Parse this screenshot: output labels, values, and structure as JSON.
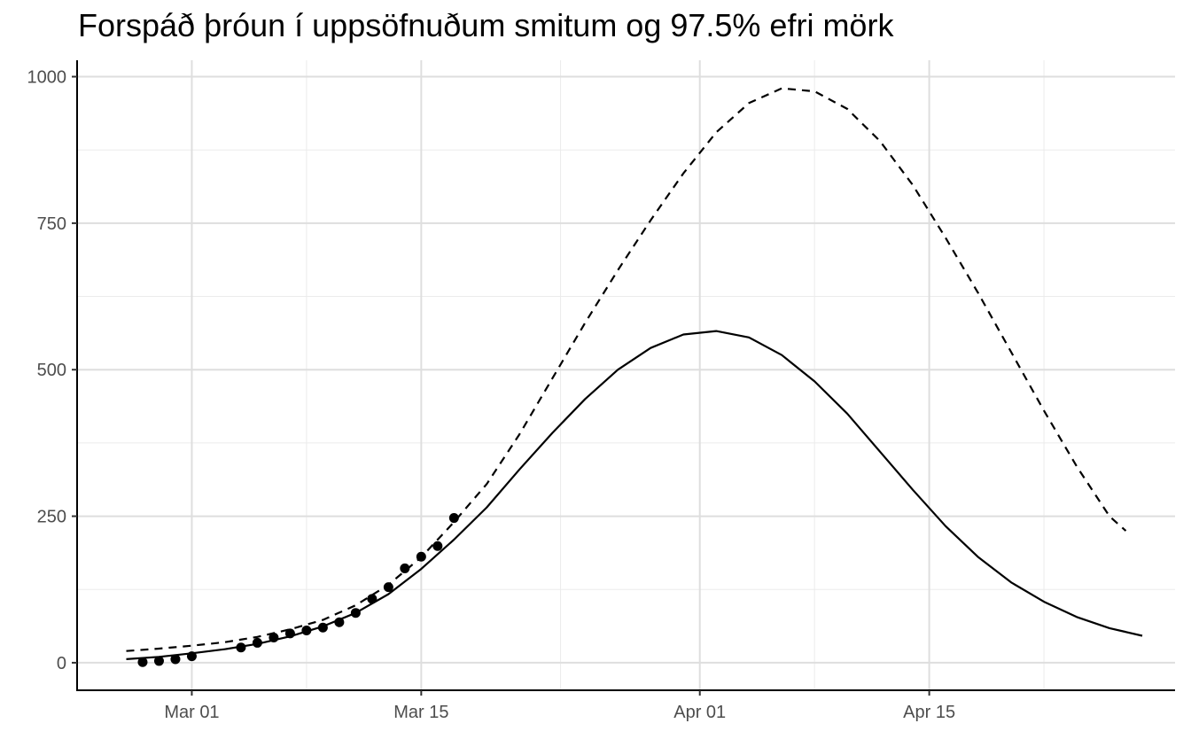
{
  "chart_data": {
    "type": "line",
    "title": "Forspáð þróun í uppsöfnuðum smitum og 97.5% efri mörk",
    "xlabel": "",
    "ylabel": "",
    "x_axis": {
      "type": "date",
      "range": [
        "2020-02-23",
        "2020-04-30"
      ],
      "ticks": [
        "2020-03-01",
        "2020-03-15",
        "2020-04-01",
        "2020-04-15"
      ],
      "tick_labels": [
        "Mar 01",
        "Mar 15",
        "Apr 01",
        "Apr 15"
      ]
    },
    "y_axis": {
      "range": [
        -47,
        1028
      ],
      "ticks": [
        0,
        250,
        500,
        750,
        1000
      ],
      "tick_labels": [
        "0",
        "250",
        "500",
        "750",
        "1000"
      ]
    },
    "grid": true,
    "legend": "none",
    "series": [
      {
        "style": "points",
        "color": "#000000",
        "points": [
          {
            "x": "2020-02-27",
            "y": 1
          },
          {
            "x": "2020-02-28",
            "y": 3
          },
          {
            "x": "2020-02-29",
            "y": 6
          },
          {
            "x": "2020-03-01",
            "y": 11
          },
          {
            "x": "2020-03-04",
            "y": 26
          },
          {
            "x": "2020-03-05",
            "y": 34
          },
          {
            "x": "2020-03-06",
            "y": 43
          },
          {
            "x": "2020-03-07",
            "y": 50
          },
          {
            "x": "2020-03-08",
            "y": 55
          },
          {
            "x": "2020-03-09",
            "y": 60
          },
          {
            "x": "2020-03-10",
            "y": 69
          },
          {
            "x": "2020-03-11",
            "y": 85
          },
          {
            "x": "2020-03-12",
            "y": 109
          },
          {
            "x": "2020-03-13",
            "y": 129
          },
          {
            "x": "2020-03-14",
            "y": 161
          },
          {
            "x": "2020-03-15",
            "y": 181
          },
          {
            "x": "2020-03-16",
            "y": 199
          },
          {
            "x": "2020-03-17",
            "y": 247
          }
        ]
      },
      {
        "style": "solid",
        "color": "#000000",
        "points": [
          {
            "x": "2020-02-26",
            "y": 6
          },
          {
            "x": "2020-02-28",
            "y": 10
          },
          {
            "x": "2020-03-01",
            "y": 16
          },
          {
            "x": "2020-03-03",
            "y": 23
          },
          {
            "x": "2020-03-05",
            "y": 32
          },
          {
            "x": "2020-03-07",
            "y": 45
          },
          {
            "x": "2020-03-09",
            "y": 62
          },
          {
            "x": "2020-03-11",
            "y": 85
          },
          {
            "x": "2020-03-13",
            "y": 117
          },
          {
            "x": "2020-03-15",
            "y": 160
          },
          {
            "x": "2020-03-17",
            "y": 210
          },
          {
            "x": "2020-03-19",
            "y": 265
          },
          {
            "x": "2020-03-21",
            "y": 330
          },
          {
            "x": "2020-03-23",
            "y": 392
          },
          {
            "x": "2020-03-25",
            "y": 450
          },
          {
            "x": "2020-03-27",
            "y": 500
          },
          {
            "x": "2020-03-29",
            "y": 537
          },
          {
            "x": "2020-03-31",
            "y": 560
          },
          {
            "x": "2020-04-02",
            "y": 566
          },
          {
            "x": "2020-04-04",
            "y": 555
          },
          {
            "x": "2020-04-06",
            "y": 525
          },
          {
            "x": "2020-04-08",
            "y": 480
          },
          {
            "x": "2020-04-10",
            "y": 425
          },
          {
            "x": "2020-04-12",
            "y": 360
          },
          {
            "x": "2020-04-14",
            "y": 295
          },
          {
            "x": "2020-04-16",
            "y": 233
          },
          {
            "x": "2020-04-18",
            "y": 180
          },
          {
            "x": "2020-04-20",
            "y": 137
          },
          {
            "x": "2020-04-22",
            "y": 104
          },
          {
            "x": "2020-04-24",
            "y": 78
          },
          {
            "x": "2020-04-26",
            "y": 59
          },
          {
            "x": "2020-04-28",
            "y": 46
          }
        ]
      },
      {
        "style": "dashed",
        "color": "#000000",
        "points": [
          {
            "x": "2020-02-26",
            "y": 20
          },
          {
            "x": "2020-02-28",
            "y": 24
          },
          {
            "x": "2020-03-01",
            "y": 29
          },
          {
            "x": "2020-03-03",
            "y": 35
          },
          {
            "x": "2020-03-05",
            "y": 44
          },
          {
            "x": "2020-03-07",
            "y": 57
          },
          {
            "x": "2020-03-09",
            "y": 73
          },
          {
            "x": "2020-03-11",
            "y": 98
          },
          {
            "x": "2020-03-13",
            "y": 133
          },
          {
            "x": "2020-03-15",
            "y": 180
          },
          {
            "x": "2020-03-17",
            "y": 240
          },
          {
            "x": "2020-03-19",
            "y": 305
          },
          {
            "x": "2020-03-21",
            "y": 390
          },
          {
            "x": "2020-03-23",
            "y": 485
          },
          {
            "x": "2020-03-25",
            "y": 580
          },
          {
            "x": "2020-03-27",
            "y": 670
          },
          {
            "x": "2020-03-29",
            "y": 755
          },
          {
            "x": "2020-03-31",
            "y": 835
          },
          {
            "x": "2020-04-02",
            "y": 905
          },
          {
            "x": "2020-04-04",
            "y": 955
          },
          {
            "x": "2020-04-06",
            "y": 980
          },
          {
            "x": "2020-04-08",
            "y": 975
          },
          {
            "x": "2020-04-10",
            "y": 945
          },
          {
            "x": "2020-04-12",
            "y": 890
          },
          {
            "x": "2020-04-14",
            "y": 815
          },
          {
            "x": "2020-04-16",
            "y": 725
          },
          {
            "x": "2020-04-18",
            "y": 630
          },
          {
            "x": "2020-04-20",
            "y": 530
          },
          {
            "x": "2020-04-22",
            "y": 430
          },
          {
            "x": "2020-04-24",
            "y": 335
          },
          {
            "x": "2020-04-26",
            "y": 250
          },
          {
            "x": "2020-04-27",
            "y": 225
          }
        ]
      }
    ]
  }
}
